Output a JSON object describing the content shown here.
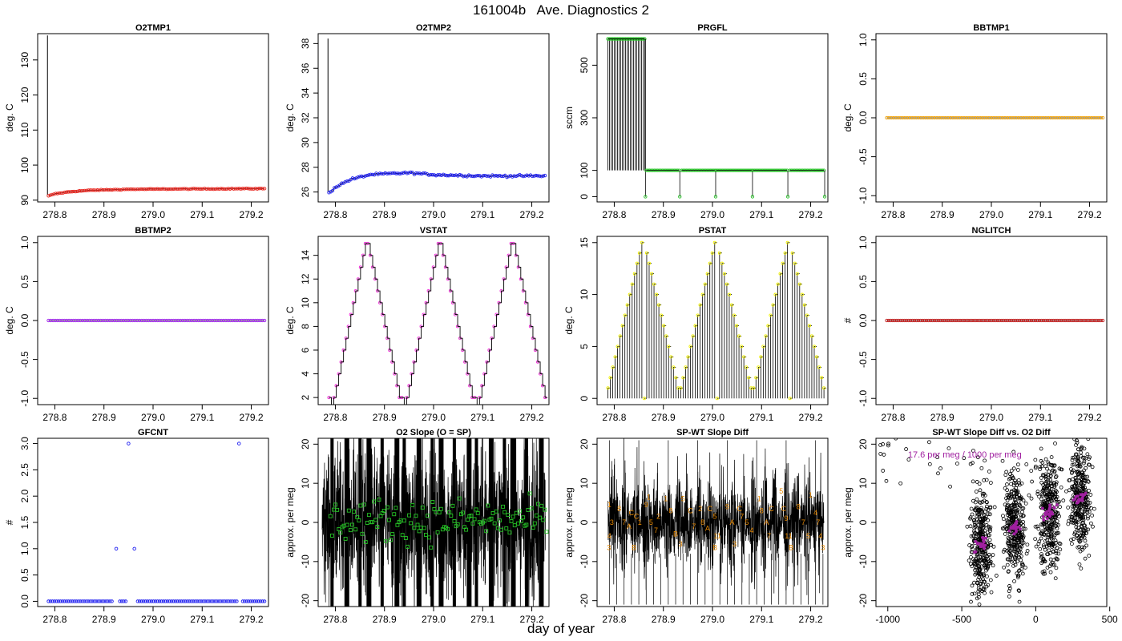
{
  "page": {
    "title": "161004b   Ave. Diagnostics 2",
    "xlabel": "day of year"
  },
  "colors": {
    "red": "#e8231c",
    "blue": "#1d1df0",
    "green": "#27c427",
    "orange": "#f2a100",
    "purple": "#a020f0",
    "magenta": "#f030d8",
    "yellow": "#f0f000",
    "darkred": "#c42020",
    "orangeText": "#e78800",
    "purpleText": "#a020a0",
    "black": "#000000"
  },
  "chart_data": [
    {
      "type": "line",
      "title": "O2TMP1",
      "ylabel": "deg. C",
      "xlim": [
        278.765,
        279.235
      ],
      "ylim": [
        89.5,
        137.5
      ],
      "xticks": [
        "278.8",
        "278.9",
        "279.0",
        "279.1",
        "279.2"
      ],
      "yticks": [
        "90",
        "100",
        "110",
        "120",
        "130"
      ],
      "spike": {
        "x": 278.785,
        "from": 91.5,
        "to": 137
      },
      "series": [
        {
          "color": "red",
          "marker": "circle",
          "x_start": 278.787,
          "x_end": 279.227,
          "y_approx": [
            [
              278.787,
              91.2
            ],
            [
              278.8,
              91.8
            ],
            [
              278.83,
              92.4
            ],
            [
              278.87,
              92.8
            ],
            [
              278.95,
              93.1
            ],
            [
              279.05,
              93.2
            ],
            [
              279.227,
              93.3
            ]
          ]
        }
      ]
    },
    {
      "type": "line",
      "title": "O2TMP2",
      "ylabel": "deg. C",
      "xlim": [
        278.765,
        279.235
      ],
      "ylim": [
        25.2,
        38.8
      ],
      "xticks": [
        "278.8",
        "278.9",
        "279.0",
        "279.1",
        "279.2"
      ],
      "yticks": [
        "26",
        "28",
        "30",
        "32",
        "34",
        "36",
        "38"
      ],
      "spike": {
        "x": 278.785,
        "from": 26,
        "to": 38.4
      },
      "series": [
        {
          "color": "blue",
          "marker": "circle",
          "x_start": 278.787,
          "x_end": 279.227,
          "y_approx": [
            [
              278.787,
              25.9
            ],
            [
              278.8,
              26.4
            ],
            [
              278.83,
              27.0
            ],
            [
              278.87,
              27.4
            ],
            [
              278.92,
              27.5
            ],
            [
              278.95,
              27.55
            ],
            [
              279.0,
              27.4
            ],
            [
              279.1,
              27.3
            ],
            [
              279.227,
              27.3
            ]
          ]
        }
      ]
    },
    {
      "type": "line",
      "title": "PRGFL",
      "ylabel": "sccm",
      "xlim": [
        278.765,
        279.235
      ],
      "ylim": [
        -20,
        620
      ],
      "xticks": [
        "278.8",
        "278.9",
        "279.0",
        "279.1",
        "279.2"
      ],
      "yticks": [
        "0",
        "100",
        "300",
        "500"
      ],
      "series": [
        {
          "color": "green",
          "marker": "circle",
          "segments": [
            {
              "x_start": 278.787,
              "x_end": 278.862,
              "y": 600
            },
            {
              "x_start": 278.865,
              "x_end": 278.932,
              "y": 100
            },
            {
              "x_start": 278.937,
              "x_end": 279.005,
              "y": 100
            },
            {
              "x_start": 279.008,
              "x_end": 279.08,
              "y": 100
            },
            {
              "x_start": 279.083,
              "x_end": 279.152,
              "y": 100
            },
            {
              "x_start": 279.157,
              "x_end": 279.227,
              "y": 100
            }
          ],
          "drop_value": 0
        }
      ]
    },
    {
      "type": "line",
      "title": "BBTMP1",
      "ylabel": "deg. C",
      "xlim": [
        278.765,
        279.235
      ],
      "ylim": [
        -1.08,
        1.08
      ],
      "xticks": [
        "278.8",
        "278.9",
        "279.0",
        "279.1",
        "279.2"
      ],
      "yticks": [
        "-1.0",
        "-0.5",
        "0.0",
        "0.5",
        "1.0"
      ],
      "series": [
        {
          "color": "orange",
          "marker": "circle",
          "x_start": 278.787,
          "x_end": 279.227,
          "constant": 0
        }
      ]
    },
    {
      "type": "line",
      "title": "BBTMP2",
      "ylabel": "deg. C",
      "xlim": [
        278.765,
        279.235
      ],
      "ylim": [
        -1.08,
        1.08
      ],
      "xticks": [
        "278.8",
        "278.9",
        "279.0",
        "279.1",
        "279.2"
      ],
      "yticks": [
        "-1.0",
        "-0.5",
        "0.0",
        "0.5",
        "1.0"
      ],
      "series": [
        {
          "color": "purple",
          "marker": "circle",
          "x_start": 278.787,
          "x_end": 279.227,
          "constant": 0
        }
      ]
    },
    {
      "type": "line",
      "title": "VSTAT",
      "ylabel": "deg. C",
      "xlim": [
        278.765,
        279.235
      ],
      "ylim": [
        1.4,
        15.6
      ],
      "xticks": [
        "278.8",
        "278.9",
        "279.0",
        "279.1",
        "279.2"
      ],
      "yticks": [
        "2",
        "4",
        "6",
        "8",
        "10",
        "12",
        "14"
      ],
      "series": [
        {
          "color": "magenta",
          "marker": "circle",
          "step": true,
          "x_start": 278.787,
          "x_end": 279.227,
          "n": 90,
          "pattern": [
            2,
            1,
            2,
            3,
            4,
            5,
            6,
            7,
            8,
            9,
            10,
            11,
            12,
            13,
            14,
            15,
            15,
            14,
            13,
            12,
            11,
            10,
            9,
            8,
            7,
            6,
            5,
            4,
            3,
            2
          ]
        }
      ]
    },
    {
      "type": "bar",
      "title": "PSTAT",
      "ylabel": "deg. C",
      "xlim": [
        278.765,
        279.235
      ],
      "ylim": [
        -0.6,
        15.6
      ],
      "xticks": [
        "278.8",
        "278.9",
        "279.0",
        "279.1",
        "279.2"
      ],
      "yticks": [
        "0",
        "5",
        "10",
        "15"
      ],
      "series": [
        {
          "color": "yellow",
          "marker": "circle",
          "x_start": 278.787,
          "x_end": 279.227,
          "n": 90,
          "pattern": [
            1,
            2,
            3,
            4,
            5,
            6,
            7,
            8,
            9,
            10,
            11,
            12,
            13,
            14,
            15,
            0,
            14,
            13,
            12,
            11,
            10,
            9,
            8,
            7,
            6,
            5,
            4,
            3,
            2,
            1
          ]
        }
      ]
    },
    {
      "type": "line",
      "title": "NGLITCH",
      "ylabel": "#",
      "xlim": [
        278.765,
        279.235
      ],
      "ylim": [
        -1.08,
        1.08
      ],
      "xticks": [
        "278.8",
        "278.9",
        "279.0",
        "279.1",
        "279.2"
      ],
      "yticks": [
        "-1.0",
        "-0.5",
        "0.0",
        "0.5",
        "1.0"
      ],
      "series": [
        {
          "color": "darkred",
          "marker": "circle",
          "x_start": 278.787,
          "x_end": 279.227,
          "constant": 0
        }
      ]
    },
    {
      "type": "scatter",
      "title": "GFCNT",
      "ylabel": "#",
      "xlim": [
        278.765,
        279.235
      ],
      "ylim": [
        -0.1,
        3.1
      ],
      "xticks": [
        "278.8",
        "278.9",
        "279.0",
        "279.1",
        "279.2"
      ],
      "yticks": [
        "0.0",
        "0.5",
        "1.0",
        "1.5",
        "2.0",
        "2.5",
        "3.0"
      ],
      "series": [
        {
          "color": "blue",
          "marker": "circle",
          "x_start": 278.787,
          "x_end": 279.227,
          "base": 0,
          "outliers": [
            [
              278.925,
              1.0
            ],
            [
              278.95,
              3.0
            ],
            [
              278.962,
              1.0
            ],
            [
              279.175,
              3.0
            ]
          ],
          "gaps": [
            [
              278.918,
              278.932
            ],
            [
              278.945,
              278.966
            ],
            [
              279.172,
              279.182
            ]
          ]
        }
      ]
    },
    {
      "type": "line",
      "title": "O2 Slope (O = SP)",
      "ylabel": "approx. per meg",
      "xlim": [
        278.765,
        279.235
      ],
      "ylim": [
        -21.5,
        21.5
      ],
      "xticks": [
        "278.8",
        "278.9",
        "279.0",
        "279.1",
        "279.2"
      ],
      "yticks": [
        "-20",
        "-10",
        "0",
        "10",
        "20"
      ],
      "series": [
        {
          "color": "black",
          "note": "dense noisy trace, roughly -20 to 20"
        },
        {
          "color": "green",
          "marker": "square",
          "center": 0.5,
          "spread": 3.5
        }
      ]
    },
    {
      "type": "line",
      "title": "SP-WT Slope Diff",
      "ylabel": "approx. per meg",
      "xlim": [
        278.765,
        279.235
      ],
      "ylim": [
        -21.5,
        21.5
      ],
      "xticks": [
        "278.8",
        "278.9",
        "279.0",
        "279.1",
        "279.2"
      ],
      "yticks": [
        "-20",
        "-10",
        "0",
        "10",
        "20"
      ],
      "labels": [
        {
          "x": 278.79,
          "y": 4.5,
          "text": "1"
        },
        {
          "x": 278.795,
          "y": 0,
          "text": "3"
        },
        {
          "x": 278.79,
          "y": -3.5,
          "text": "4"
        },
        {
          "x": 278.789,
          "y": -6.5,
          "text": "3"
        },
        {
          "x": 278.81,
          "y": 3.5,
          "text": "8"
        },
        {
          "x": 278.82,
          "y": 0,
          "text": "7"
        },
        {
          "x": 278.83,
          "y": -1,
          "text": "A"
        },
        {
          "x": 278.835,
          "y": 2.5,
          "text": "C"
        },
        {
          "x": 278.845,
          "y": 1.5,
          "text": "C"
        },
        {
          "x": 278.852,
          "y": 0,
          "text": "1"
        },
        {
          "x": 278.84,
          "y": -6.5,
          "text": "B"
        },
        {
          "x": 278.865,
          "y": 4.5,
          "text": "9"
        },
        {
          "x": 278.875,
          "y": 0,
          "text": "5"
        },
        {
          "x": 278.87,
          "y": 6.5,
          "text": "1"
        },
        {
          "x": 278.885,
          "y": -2,
          "text": "7"
        },
        {
          "x": 278.89,
          "y": 1.5,
          "text": "2"
        },
        {
          "x": 278.905,
          "y": 6,
          "text": "1"
        },
        {
          "x": 278.915,
          "y": 3,
          "text": "8"
        },
        {
          "x": 278.925,
          "y": -3,
          "text": "B"
        },
        {
          "x": 278.935,
          "y": -5.5,
          "text": "3"
        },
        {
          "x": 278.94,
          "y": 6,
          "text": "5"
        },
        {
          "x": 278.955,
          "y": 3,
          "text": "C"
        },
        {
          "x": 278.962,
          "y": -1,
          "text": "7"
        },
        {
          "x": 278.975,
          "y": 3.5,
          "text": "2"
        },
        {
          "x": 278.98,
          "y": 0,
          "text": "8"
        },
        {
          "x": 278.99,
          "y": -1.5,
          "text": "A"
        },
        {
          "x": 278.995,
          "y": 3.5,
          "text": "C"
        },
        {
          "x": 279.005,
          "y": 1.5,
          "text": "5"
        },
        {
          "x": 279.01,
          "y": -3.5,
          "text": "11"
        },
        {
          "x": 279.005,
          "y": -6.5,
          "text": "B"
        },
        {
          "x": 279.03,
          "y": 4,
          "text": "9"
        },
        {
          "x": 279.04,
          "y": 0,
          "text": "A"
        },
        {
          "x": 279.045,
          "y": -5.5,
          "text": "3"
        },
        {
          "x": 279.055,
          "y": 3.5,
          "text": "C"
        },
        {
          "x": 279.06,
          "y": 1.5,
          "text": "7"
        },
        {
          "x": 279.07,
          "y": 0,
          "text": "5"
        },
        {
          "x": 279.08,
          "y": -2,
          "text": "4"
        },
        {
          "x": 279.095,
          "y": 6,
          "text": "1"
        },
        {
          "x": 279.1,
          "y": 3,
          "text": "8"
        },
        {
          "x": 279.11,
          "y": 0,
          "text": "A"
        },
        {
          "x": 279.115,
          "y": -3.5,
          "text": "7"
        },
        {
          "x": 279.12,
          "y": 3.5,
          "text": "C"
        },
        {
          "x": 279.14,
          "y": 8,
          "text": "5"
        },
        {
          "x": 279.145,
          "y": 3.5,
          "text": "C"
        },
        {
          "x": 279.15,
          "y": 1,
          "text": "9"
        },
        {
          "x": 279.155,
          "y": -3.5,
          "text": "11"
        },
        {
          "x": 279.16,
          "y": -6.5,
          "text": "B"
        },
        {
          "x": 279.175,
          "y": 4,
          "text": "8"
        },
        {
          "x": 279.185,
          "y": 0,
          "text": "7"
        },
        {
          "x": 279.195,
          "y": -3.5,
          "text": "5"
        },
        {
          "x": 279.2,
          "y": 7,
          "text": "1"
        },
        {
          "x": 279.21,
          "y": 2.5,
          "text": "4"
        },
        {
          "x": 279.215,
          "y": 0,
          "text": "7"
        },
        {
          "x": 279.22,
          "y": -3.5,
          "text": "4"
        },
        {
          "x": 279.225,
          "y": -6.5,
          "text": "3"
        }
      ]
    },
    {
      "type": "scatter",
      "title": "SP-WT Slope Diff vs. O2 Diff",
      "ylabel": "approx. per meg",
      "xlim": [
        -1080,
        480
      ],
      "ylim": [
        -21.5,
        21.5
      ],
      "xticks": [
        "-1000",
        "-500",
        "0",
        "500"
      ],
      "yticks": [
        "-20",
        "-10",
        "0",
        "10",
        "20"
      ],
      "annotation": "17.6 per meg / 1000 per meg",
      "clusters": [
        {
          "x": -370,
          "y_mean": -5,
          "spread": 7
        },
        {
          "x": -140,
          "y_mean": -1,
          "spread": 7
        },
        {
          "x": 90,
          "y_mean": 2.5,
          "spread": 7
        },
        {
          "x": 300,
          "y_mean": 6.5,
          "spread": 7
        }
      ],
      "fit": {
        "slope": 0.0176,
        "intercept": 1.0
      }
    }
  ]
}
